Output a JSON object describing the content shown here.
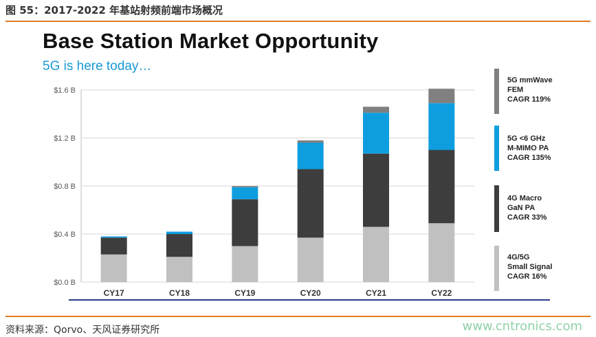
{
  "figure": {
    "caption": "图 55：2017-2022 年基站射频前端市场概况",
    "source": "资料来源：Qorvo、天风证券研究所",
    "watermark": "www.cntronics.com"
  },
  "chart_data": {
    "type": "bar",
    "stacked": true,
    "title": "Base Station Market Opportunity",
    "subtitle": "5G is here today…",
    "xlabel": "",
    "ylabel": "",
    "ylim": [
      0,
      1.6
    ],
    "y_ticks": [
      0,
      0.4,
      0.8,
      1.2,
      1.6
    ],
    "y_tick_labels": [
      "$0.0 B",
      "$0.4 B",
      "$0.8 B",
      "$1.2 B",
      "$1.6 B"
    ],
    "grid": "horizontal",
    "legend_position": "right",
    "categories": [
      "CY17",
      "CY18",
      "CY19",
      "CY20",
      "CY21",
      "CY22"
    ],
    "series": [
      {
        "name": "4G/5G Small Signal",
        "cagr": "CAGR 16%",
        "color": "#c0c0c0",
        "values": [
          0.23,
          0.21,
          0.3,
          0.37,
          0.46,
          0.49
        ]
      },
      {
        "name": "4G Macro GaN PA",
        "cagr": "CAGR 33%",
        "color": "#3d3d3d",
        "values": [
          0.14,
          0.19,
          0.39,
          0.57,
          0.61,
          0.61
        ]
      },
      {
        "name": "5G <6 GHz M-MIMO PA",
        "cagr": "CAGR 135%",
        "color": "#0e9ee0",
        "values": [
          0.01,
          0.02,
          0.1,
          0.22,
          0.34,
          0.39
        ]
      },
      {
        "name": "5G mmW FEM",
        "cagr": "CAGR 119%",
        "color": "#808080",
        "values": [
          0.0,
          0.0,
          0.01,
          0.02,
          0.05,
          0.12
        ]
      }
    ]
  },
  "legend": [
    {
      "lines": [
        "5G mmWave",
        "FEM",
        "CAGR 119%"
      ],
      "color": "#808080"
    },
    {
      "lines": [
        "5G <6 GHz",
        "M-MIMO  PA",
        "CAGR 135%"
      ],
      "color": "#0e9ee0"
    },
    {
      "lines": [
        "4G Macro",
        "GaN PA",
        "CAGR 33%"
      ],
      "color": "#3d3d3d"
    },
    {
      "lines": [
        "4G/5G",
        "Small Signal",
        "CAGR 16%"
      ],
      "color": "#c0c0c0"
    }
  ]
}
